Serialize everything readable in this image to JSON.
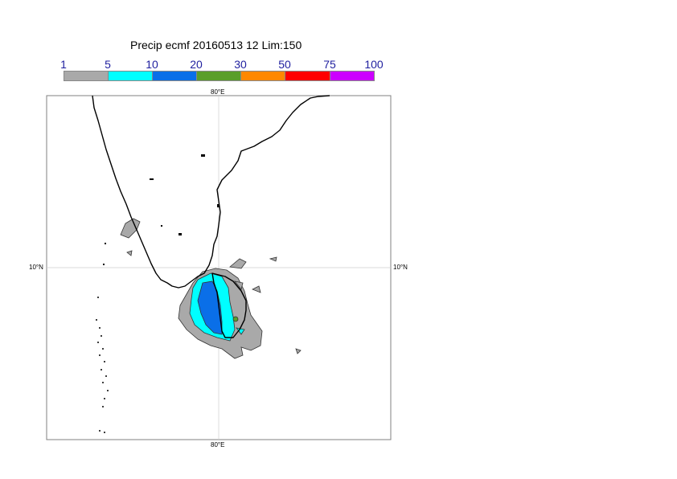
{
  "title": "Precip ecmf 20160513 12 Lim:150",
  "legend": {
    "labels": [
      "1",
      "5",
      "10",
      "20",
      "30",
      "50",
      "75",
      "100"
    ],
    "colors": [
      "#a9a9a9",
      "#00ffff",
      "#0a6fe8",
      "#5a9e2a",
      "#ff8800",
      "#ff0000",
      "#cc00ff"
    ]
  },
  "axes": {
    "top_lon": "80°E",
    "bottom_lon": "80°E",
    "left_lat": "10°N",
    "right_lat": "10°N"
  }
}
